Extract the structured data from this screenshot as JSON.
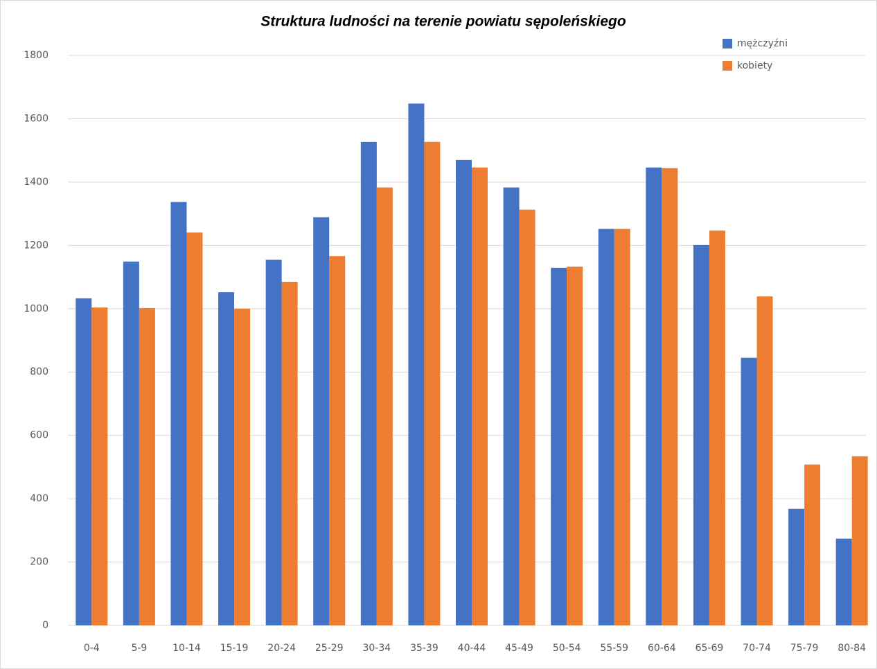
{
  "chart_data": {
    "type": "bar",
    "title": "Struktura ludności na terenie powiatu sępoleńskiego",
    "categories": [
      "0-4",
      "5-9",
      "10-14",
      "15-19",
      "20-24",
      "25-29",
      "30-34",
      "35-39",
      "40-44",
      "45-49",
      "50-54",
      "55-59",
      "60-64",
      "65-69",
      "70-74",
      "75-79",
      "80-84"
    ],
    "series": [
      {
        "name": "mężczyźni",
        "color": "#4472c4",
        "values": [
          1033,
          1149,
          1337,
          1052,
          1155,
          1289,
          1527,
          1648,
          1470,
          1383,
          1129,
          1252,
          1446,
          1201,
          845,
          368,
          274
        ]
      },
      {
        "name": "kobiety",
        "color": "#ed7d31",
        "values": [
          1004,
          1002,
          1241,
          1000,
          1085,
          1166,
          1383,
          1527,
          1446,
          1313,
          1133,
          1252,
          1444,
          1247,
          1039,
          508,
          534
        ]
      }
    ],
    "ylim": [
      0,
      1800
    ],
    "yticks": [
      0,
      200,
      400,
      600,
      800,
      1000,
      1200,
      1400,
      1600,
      1800
    ],
    "grid": true,
    "legend": "top-right"
  }
}
